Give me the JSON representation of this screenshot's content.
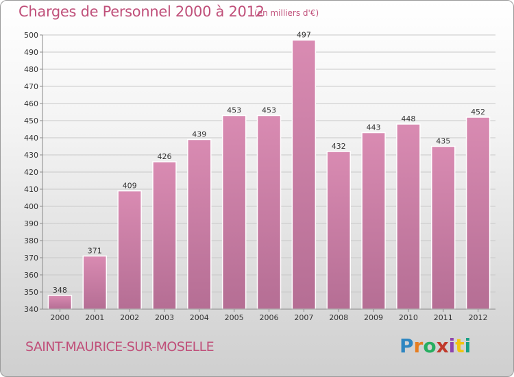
{
  "header": {
    "title": "Charges de Personnel 2000 à 2012",
    "subtitle": "(en milliers d'€)"
  },
  "footer": {
    "place": "SAINT-MAURICE-SUR-MOSELLE",
    "logo": {
      "text": "Proxiti",
      "colors": [
        "#2e86c1",
        "#e67e22",
        "#27ae60",
        "#c0392b",
        "#8e44ad",
        "#f1c40f",
        "#16a085"
      ]
    }
  },
  "colors": {
    "bar": "#d98bb2",
    "bar_dark": "#b56e94",
    "grid": "#c8c8c8",
    "axis": "#888888",
    "text_accent": "#c0507a"
  },
  "chart_data": {
    "type": "bar",
    "categories": [
      "2000",
      "2001",
      "2002",
      "2003",
      "2004",
      "2005",
      "2006",
      "2007",
      "2008",
      "2009",
      "2010",
      "2011",
      "2012"
    ],
    "values": [
      348,
      371,
      409,
      426,
      439,
      453,
      453,
      497,
      432,
      443,
      448,
      435,
      452
    ],
    "ylim": [
      340,
      500
    ],
    "yticks": [
      340,
      350,
      360,
      370,
      380,
      390,
      400,
      410,
      420,
      430,
      440,
      450,
      460,
      470,
      480,
      490,
      500
    ],
    "grid": true,
    "data_labels": true
  }
}
